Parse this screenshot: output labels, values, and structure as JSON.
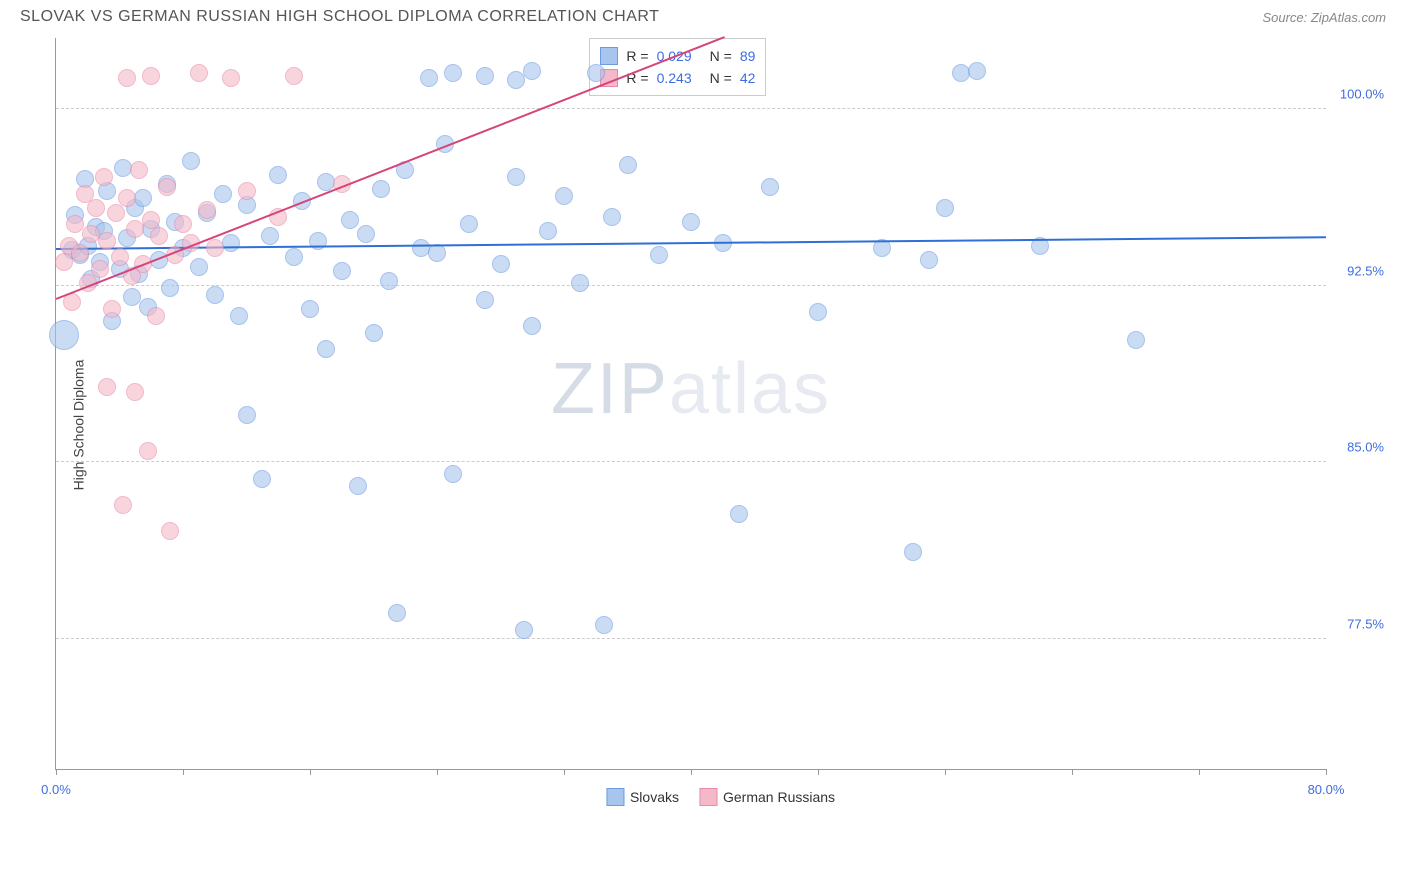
{
  "title": "SLOVAK VS GERMAN RUSSIAN HIGH SCHOOL DIPLOMA CORRELATION CHART",
  "source": "Source: ZipAtlas.com",
  "watermark": {
    "left": "ZIP",
    "right": "atlas"
  },
  "chart": {
    "type": "scatter",
    "y_axis_title": "High School Diploma",
    "background_color": "#ffffff",
    "grid_color": "#cccccc",
    "axis_color": "#999999",
    "xlim": [
      0,
      80
    ],
    "ylim": [
      72,
      103
    ],
    "x_ticks": [
      0,
      8,
      16,
      24,
      32,
      40,
      48,
      56,
      64,
      72,
      80
    ],
    "x_tick_labels": {
      "0": "0.0%",
      "80": "80.0%"
    },
    "y_ticks": [
      77.5,
      85.0,
      92.5,
      100.0
    ],
    "y_tick_format": "%",
    "label_fontsize": 13,
    "label_color": "#3d6de0",
    "point_radius": 9,
    "point_radius_large": 15,
    "series": [
      {
        "name": "Slovaks",
        "fill": "#a8c5ed",
        "stroke": "#6d9be0",
        "opacity": 0.6,
        "trend_color": "#2f6fd6",
        "trend": {
          "y_at_xmin": 94.0,
          "y_at_xmax": 94.5
        },
        "R": "0.029",
        "N": "89",
        "points": [
          [
            0.5,
            90.4,
            15
          ],
          [
            1,
            94
          ],
          [
            1.2,
            95.5
          ],
          [
            1.5,
            93.8
          ],
          [
            1.8,
            97
          ],
          [
            2,
            94.2
          ],
          [
            2.2,
            92.8
          ],
          [
            2.5,
            95
          ],
          [
            2.8,
            93.5
          ],
          [
            3,
            94.8
          ],
          [
            3.2,
            96.5
          ],
          [
            3.5,
            91
          ],
          [
            4,
            93.2
          ],
          [
            4.2,
            97.5
          ],
          [
            4.5,
            94.5
          ],
          [
            4.8,
            92
          ],
          [
            5,
            95.8
          ],
          [
            5.2,
            93
          ],
          [
            5.5,
            96.2
          ],
          [
            5.8,
            91.6
          ],
          [
            6,
            94.9
          ],
          [
            6.5,
            93.6
          ],
          [
            7,
            96.8
          ],
          [
            7.2,
            92.4
          ],
          [
            7.5,
            95.2
          ],
          [
            8,
            94.1
          ],
          [
            8.5,
            97.8
          ],
          [
            9,
            93.3
          ],
          [
            9.5,
            95.6
          ],
          [
            10,
            92.1
          ],
          [
            10.5,
            96.4
          ],
          [
            11,
            94.3
          ],
          [
            11.5,
            91.2
          ],
          [
            12,
            95.9
          ],
          [
            12,
            87
          ],
          [
            13,
            84.3
          ],
          [
            13.5,
            94.6
          ],
          [
            14,
            97.2
          ],
          [
            15,
            93.7
          ],
          [
            15.5,
            96.1
          ],
          [
            16,
            91.5
          ],
          [
            16.5,
            94.4
          ],
          [
            17,
            96.9
          ],
          [
            17,
            89.8
          ],
          [
            18,
            93.1
          ],
          [
            18.5,
            95.3
          ],
          [
            19,
            84.0
          ],
          [
            19.5,
            94.7
          ],
          [
            20,
            90.5
          ],
          [
            20.5,
            96.6
          ],
          [
            21,
            92.7
          ],
          [
            21.5,
            78.6
          ],
          [
            22,
            97.4
          ],
          [
            23,
            94.1
          ],
          [
            23.5,
            101.3
          ],
          [
            24,
            93.9
          ],
          [
            24.5,
            98.5
          ],
          [
            25,
            84.5
          ],
          [
            25,
            101.5
          ],
          [
            26,
            95.1
          ],
          [
            27,
            91.9
          ],
          [
            27,
            101.4
          ],
          [
            28,
            93.4
          ],
          [
            29,
            97.1
          ],
          [
            29,
            101.2
          ],
          [
            29.5,
            77.9
          ],
          [
            30,
            90.8
          ],
          [
            30,
            101.6
          ],
          [
            31,
            94.8
          ],
          [
            32,
            96.3
          ],
          [
            33,
            92.6
          ],
          [
            34,
            101.5
          ],
          [
            34.5,
            78.1
          ],
          [
            35,
            95.4
          ],
          [
            36,
            97.6
          ],
          [
            38,
            93.8
          ],
          [
            40,
            95.2
          ],
          [
            42,
            94.3
          ],
          [
            43,
            82.8
          ],
          [
            45,
            96.7
          ],
          [
            48,
            91.4
          ],
          [
            52,
            94.1
          ],
          [
            54,
            81.2
          ],
          [
            55,
            93.6
          ],
          [
            56,
            95.8
          ],
          [
            57,
            101.5
          ],
          [
            58,
            101.6
          ],
          [
            62,
            94.2
          ],
          [
            68,
            90.2
          ]
        ]
      },
      {
        "name": "German Russians",
        "fill": "#f4b8c8",
        "stroke": "#e88ba8",
        "opacity": 0.6,
        "trend_color": "#d6447a",
        "trend": {
          "y_at_xmin": 91.9,
          "y_at_xmax": 113.0
        },
        "R": "0.243",
        "N": "42",
        "points": [
          [
            0.5,
            93.5
          ],
          [
            0.8,
            94.2
          ],
          [
            1,
            91.8
          ],
          [
            1.2,
            95.1
          ],
          [
            1.5,
            93.9
          ],
          [
            1.8,
            96.4
          ],
          [
            2,
            92.6
          ],
          [
            2.2,
            94.7
          ],
          [
            2.5,
            95.8
          ],
          [
            2.8,
            93.2
          ],
          [
            3,
            97.1
          ],
          [
            3.2,
            88.2
          ],
          [
            3.2,
            94.4
          ],
          [
            3.5,
            91.5
          ],
          [
            3.8,
            95.6
          ],
          [
            4,
            93.7
          ],
          [
            4.2,
            83.2
          ],
          [
            4.5,
            96.2
          ],
          [
            4.5,
            101.3
          ],
          [
            4.8,
            92.9
          ],
          [
            5,
            94.9
          ],
          [
            5,
            88.0
          ],
          [
            5.2,
            97.4
          ],
          [
            5.5,
            93.4
          ],
          [
            5.8,
            85.5
          ],
          [
            6,
            95.3
          ],
          [
            6,
            101.4
          ],
          [
            6.3,
            91.2
          ],
          [
            6.5,
            94.6
          ],
          [
            7,
            96.7
          ],
          [
            7.2,
            82.1
          ],
          [
            7.5,
            93.8
          ],
          [
            8,
            95.1
          ],
          [
            8.5,
            94.3
          ],
          [
            9,
            101.5
          ],
          [
            9.5,
            95.7
          ],
          [
            10,
            94.1
          ],
          [
            11,
            101.3
          ],
          [
            12,
            96.5
          ],
          [
            14,
            95.4
          ],
          [
            15,
            101.4
          ],
          [
            18,
            96.8
          ]
        ]
      }
    ],
    "legend_box": {
      "border_color": "#cccccc",
      "bg": "#ffffff"
    },
    "bottom_legend_labels": [
      "Slovaks",
      "German Russians"
    ]
  }
}
